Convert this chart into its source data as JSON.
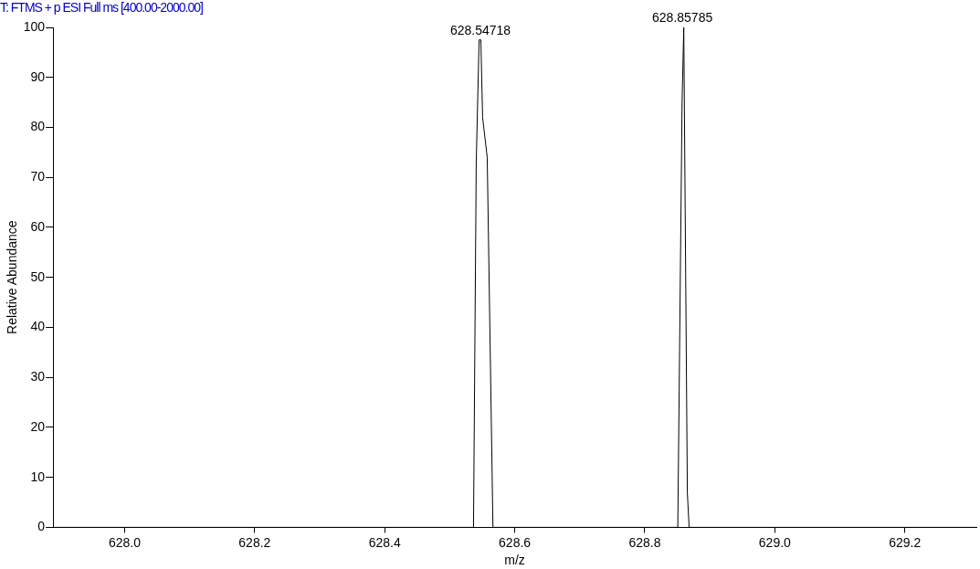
{
  "chart_data": {
    "type": "line",
    "title": "T: FTMS + p ESI Full ms [400.00-2000.00]",
    "xlabel": "m/z",
    "ylabel": "Relative Abundance",
    "x": [
      627.89,
      628.5366,
      628.5408,
      628.5452,
      628.5479,
      628.5506,
      628.5577,
      628.5665,
      628.8508,
      628.8574,
      628.86,
      628.8655,
      628.8682,
      629.31
    ],
    "series": [
      {
        "color": "#000000",
        "values": [
          0,
          0,
          73,
          97.5,
          97.5,
          82,
          74,
          0,
          0,
          85,
          100,
          7,
          0,
          0
        ]
      }
    ],
    "xlim": [
      627.89,
      629.31
    ],
    "xticks": [
      {
        "value": 628.0,
        "label": "628.0"
      },
      {
        "value": 628.2,
        "label": "628.2"
      },
      {
        "value": 628.4,
        "label": "628.4"
      },
      {
        "value": 628.6,
        "label": "628.6"
      },
      {
        "value": 628.8,
        "label": "628.8"
      },
      {
        "value": 629.0,
        "label": "629.0"
      },
      {
        "value": 629.2,
        "label": "629.2"
      }
    ],
    "ylim": [
      0,
      100
    ],
    "yticks": [
      0,
      10,
      20,
      30,
      40,
      50,
      60,
      70,
      80,
      90,
      100
    ],
    "annotations": [
      {
        "text": "628.54718",
        "x": 628.54718,
        "y": 97.5
      },
      {
        "text": "628.85785",
        "x": 628.85785,
        "y": 100
      }
    ],
    "grid": false,
    "legend": false,
    "marker": "none",
    "line_style": "solid"
  }
}
